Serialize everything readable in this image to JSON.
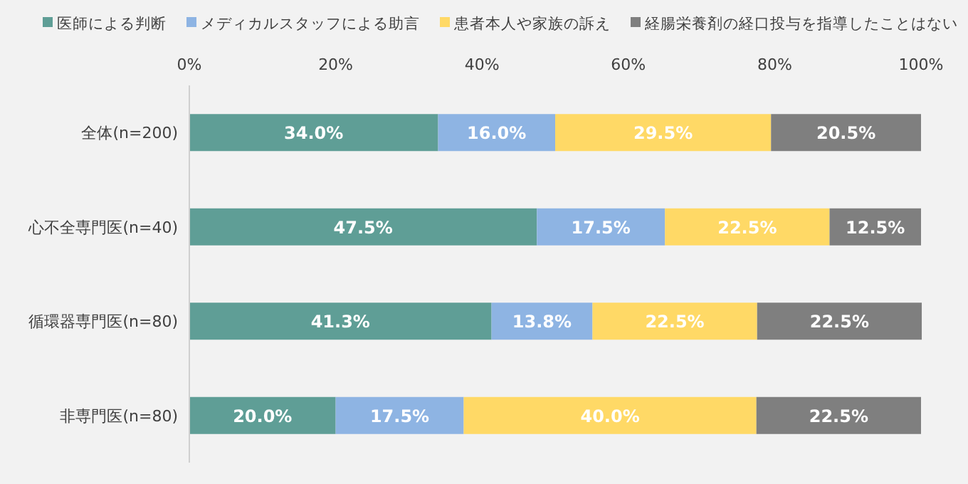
{
  "chart_data": {
    "type": "bar",
    "orientation": "horizontal",
    "stacked": true,
    "legend": "top",
    "categories": [
      "全体(n=200)",
      "心不全専門医(n=40)",
      "循環器専門医(n=80)",
      "非専門医(n=80)"
    ],
    "xlim": [
      0,
      100
    ],
    "xticks": [
      {
        "value": 0,
        "label": "0%"
      },
      {
        "value": 20,
        "label": "20%"
      },
      {
        "value": 40,
        "label": "40%"
      },
      {
        "value": 60,
        "label": "60%"
      },
      {
        "value": 80,
        "label": "80%"
      },
      {
        "value": 100,
        "label": "100%"
      }
    ],
    "series": [
      {
        "name": "医師による判断",
        "color": "#5f9e96",
        "values": [
          34.0,
          47.5,
          41.3,
          20.0
        ],
        "value_labels": [
          "34.0%",
          "47.5%",
          "41.3%",
          "20.0%"
        ]
      },
      {
        "name": "メディカルスタッフによる助言",
        "color": "#8eb4e3",
        "values": [
          16.0,
          17.5,
          13.8,
          17.5
        ],
        "value_labels": [
          "16.0%",
          "17.5%",
          "13.8%",
          "17.5%"
        ]
      },
      {
        "name": "患者本人や家族の訴え",
        "color": "#ffd966",
        "values": [
          29.5,
          22.5,
          22.5,
          40.0
        ],
        "value_labels": [
          "29.5%",
          "22.5%",
          "22.5%",
          "40.0%"
        ]
      },
      {
        "name": "経腸栄養剤の経口投与を指導したことはない",
        "color": "#7f7f7f",
        "values": [
          20.5,
          12.5,
          22.5,
          22.5
        ],
        "value_labels": [
          "20.5%",
          "12.5%",
          "22.5%",
          "22.5%"
        ]
      }
    ]
  }
}
